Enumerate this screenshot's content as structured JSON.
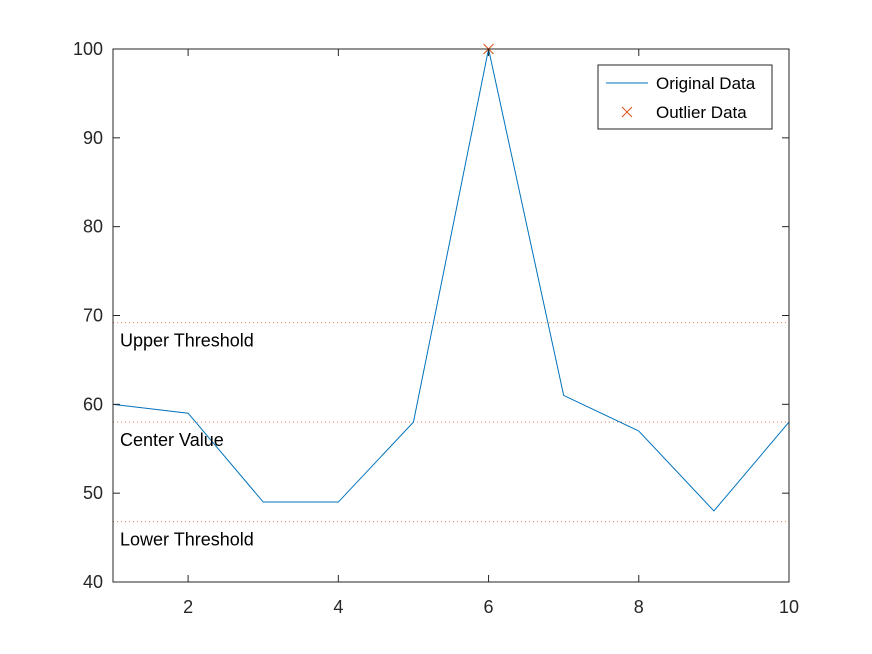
{
  "chart_data": {
    "type": "line",
    "title": "",
    "xlabel": "",
    "ylabel": "",
    "xlim": [
      1,
      10
    ],
    "ylim": [
      40,
      100
    ],
    "xticks": [
      2,
      4,
      6,
      8,
      10
    ],
    "yticks": [
      40,
      50,
      60,
      70,
      80,
      90,
      100
    ],
    "x": [
      1,
      2,
      3,
      4,
      5,
      6,
      7,
      8,
      9,
      10
    ],
    "series": [
      {
        "name": "Original Data",
        "type": "line",
        "color": "#0072bd",
        "values": [
          60,
          59,
          49,
          49,
          58,
          100,
          61,
          57,
          48,
          58
        ]
      },
      {
        "name": "Outlier Data",
        "type": "marker-x",
        "color": "#d95319",
        "points": [
          {
            "x": 6,
            "y": 100
          }
        ]
      }
    ],
    "thresholds": [
      {
        "label": "Upper Threshold",
        "value": 69.2,
        "color": "#d95319"
      },
      {
        "label": "Center Value",
        "value": 58,
        "color": "#d95319"
      },
      {
        "label": "Lower Threshold",
        "value": 46.8,
        "color": "#d95319"
      }
    ],
    "grid": false,
    "legend_position": "top-right"
  }
}
